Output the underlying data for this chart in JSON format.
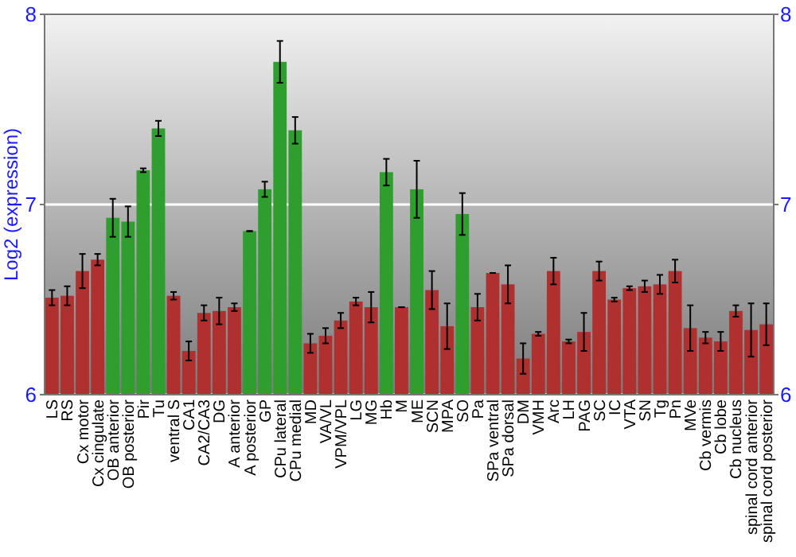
{
  "chart_data": {
    "type": "bar",
    "ylabel": "Log2 (expression)",
    "categories": [
      "LS",
      "RS",
      "Cx motor",
      "Cx cingulate",
      "OB anterior",
      "OB posterior",
      "Pir",
      "Tu",
      "ventral S",
      "CA1",
      "CA2/CA3",
      "DG",
      "A anterior",
      "A posterior",
      "GP",
      "CPu lateral",
      "CPu medial",
      "MD",
      "VA/VL",
      "VPM/VPL",
      "LG",
      "MG",
      "Hb",
      "M",
      "ME",
      "SCN",
      "MPA",
      "SO",
      "Pa",
      "SPa ventral",
      "SPa dorsal",
      "DM",
      "VMH",
      "Arc",
      "LH",
      "PAG",
      "SC",
      "IC",
      "VTA",
      "SN",
      "Tg",
      "Pn",
      "MVe",
      "Cb vermis",
      "Cb lobe",
      "Cb nucleus",
      "spinal cord anterior",
      "spinal cord posterior"
    ],
    "values": [
      6.51,
      6.52,
      6.65,
      6.71,
      6.93,
      6.91,
      7.18,
      7.4,
      6.52,
      6.23,
      6.43,
      6.44,
      6.46,
      6.86,
      7.08,
      7.75,
      7.39,
      6.27,
      6.31,
      6.39,
      6.49,
      6.46,
      7.17,
      6.46,
      7.08,
      6.55,
      6.36,
      6.95,
      6.46,
      6.64,
      6.58,
      6.19,
      6.32,
      6.65,
      6.28,
      6.33,
      6.65,
      6.5,
      6.56,
      6.57,
      6.58,
      6.65,
      6.35,
      6.3,
      6.28,
      6.44,
      6.34,
      6.37
    ],
    "errors": [
      0.04,
      0.05,
      0.09,
      0.03,
      0.1,
      0.08,
      0.01,
      0.04,
      0.02,
      0.05,
      0.04,
      0.07,
      0.02,
      0,
      0.04,
      0.11,
      0.07,
      0.05,
      0.04,
      0.04,
      0.02,
      0.08,
      0.07,
      0,
      0.15,
      0.1,
      0.12,
      0.11,
      0.07,
      0,
      0.1,
      0.08,
      0.01,
      0.07,
      0.01,
      0.1,
      0.05,
      0.01,
      0.01,
      0.03,
      0.05,
      0.06,
      0.12,
      0.03,
      0.05,
      0.03,
      0.14,
      0.11
    ],
    "colors": [
      "#b03030",
      "#b03030",
      "#b03030",
      "#b03030",
      "#2e9e2e",
      "#2e9e2e",
      "#2e9e2e",
      "#2e9e2e",
      "#b03030",
      "#b03030",
      "#b03030",
      "#b03030",
      "#b03030",
      "#2e9e2e",
      "#2e9e2e",
      "#2e9e2e",
      "#2e9e2e",
      "#b03030",
      "#b03030",
      "#b03030",
      "#b03030",
      "#b03030",
      "#2e9e2e",
      "#b03030",
      "#2e9e2e",
      "#b03030",
      "#b03030",
      "#2e9e2e",
      "#b03030",
      "#b03030",
      "#b03030",
      "#b03030",
      "#b03030",
      "#b03030",
      "#b03030",
      "#b03030",
      "#b03030",
      "#b03030",
      "#b03030",
      "#b03030",
      "#b03030",
      "#b03030",
      "#b03030",
      "#b03030",
      "#b03030",
      "#b03030",
      "#b03030",
      "#b03030"
    ],
    "ylim": [
      6,
      8
    ],
    "yticks": [
      6,
      7,
      8
    ],
    "y2lim": [
      6,
      8
    ],
    "y2ticks": [
      6,
      7,
      8
    ],
    "grid": "y"
  }
}
